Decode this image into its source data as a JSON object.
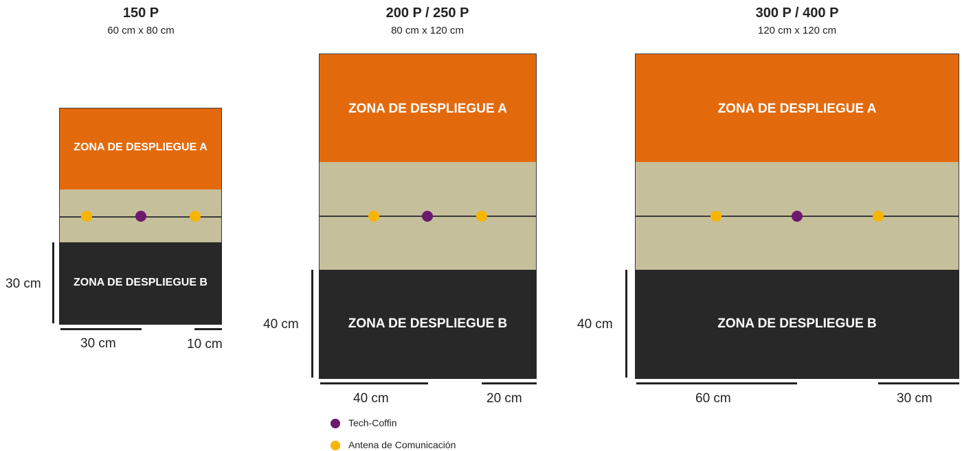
{
  "boards": [
    {
      "title": "150 P",
      "size": "60 cm x 80 cm",
      "zone_a": "ZONA DE DESPLIEGUE A",
      "zone_b": "ZONA DE DESPLIEGUE B",
      "height_label": "30 cm",
      "left_width_label": "30 cm",
      "right_width_label": "10 cm"
    },
    {
      "title": "200 P / 250 P",
      "size": "80 cm x 120 cm",
      "zone_a": "ZONA DE DESPLIEGUE A",
      "zone_b": "ZONA DE DESPLIEGUE B",
      "height_label": "40 cm",
      "left_width_label": "40 cm",
      "right_width_label": "20 cm"
    },
    {
      "title": "300 P / 400 P",
      "size": "120 cm x 120 cm",
      "zone_a": "ZONA DE DESPLIEGUE A",
      "zone_b": "ZONA DE DESPLIEGUE B",
      "height_label": "40 cm",
      "left_width_label": "60 cm",
      "right_width_label": "30 cm"
    }
  ],
  "legend": {
    "tech_coffin": "Tech-Coffin",
    "antena": "Antena de Comunicación"
  },
  "colors": {
    "zone_a": "#e36a0c",
    "neutral": "#c6bf9b",
    "zone_b": "#282828",
    "tech_coffin": "#6b1a6e",
    "antena": "#f7b500"
  }
}
